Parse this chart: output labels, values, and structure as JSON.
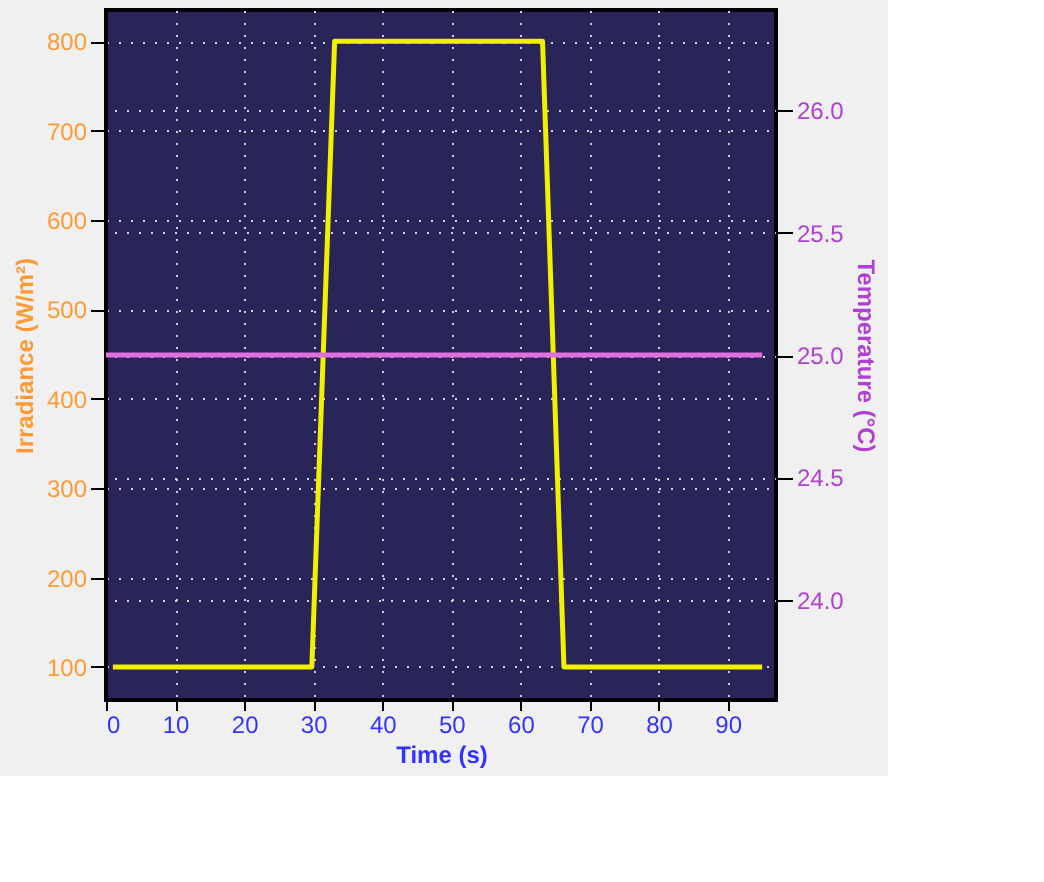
{
  "chart_data": {
    "type": "line",
    "xlabel": "Time (s)",
    "ylabel": "Irradiance (W/m²)",
    "y2label": "Temperature (°C)",
    "xlim": [
      0,
      97
    ],
    "xticks": [
      0,
      10,
      20,
      30,
      40,
      50,
      60,
      70,
      80,
      90
    ],
    "ylim": [
      63,
      835
    ],
    "yticks": [
      100,
      200,
      300,
      400,
      500,
      600,
      700,
      800
    ],
    "y2lim": [
      23.59,
      26.41
    ],
    "y2ticks": [
      {
        "value": 24,
        "label": "24.0"
      },
      {
        "value": 24.5,
        "label": "24.5"
      },
      {
        "value": 25,
        "label": "25.0"
      },
      {
        "value": 25.5,
        "label": "25.5"
      },
      {
        "value": 26,
        "label": "26.0"
      }
    ],
    "grid": true,
    "marker": "none",
    "line_style": "solid",
    "series": [
      {
        "color": "#f0f000",
        "x": [
          1,
          29.8,
          33.1,
          63.2,
          66.3,
          95
        ],
        "values": [
          100,
          100,
          800,
          800,
          100,
          100
        ]
      },
      {
        "color": "#e070e0",
        "axis": "y2",
        "x": [
          0,
          95
        ],
        "values": [
          25.0,
          25.0
        ]
      }
    ]
  }
}
